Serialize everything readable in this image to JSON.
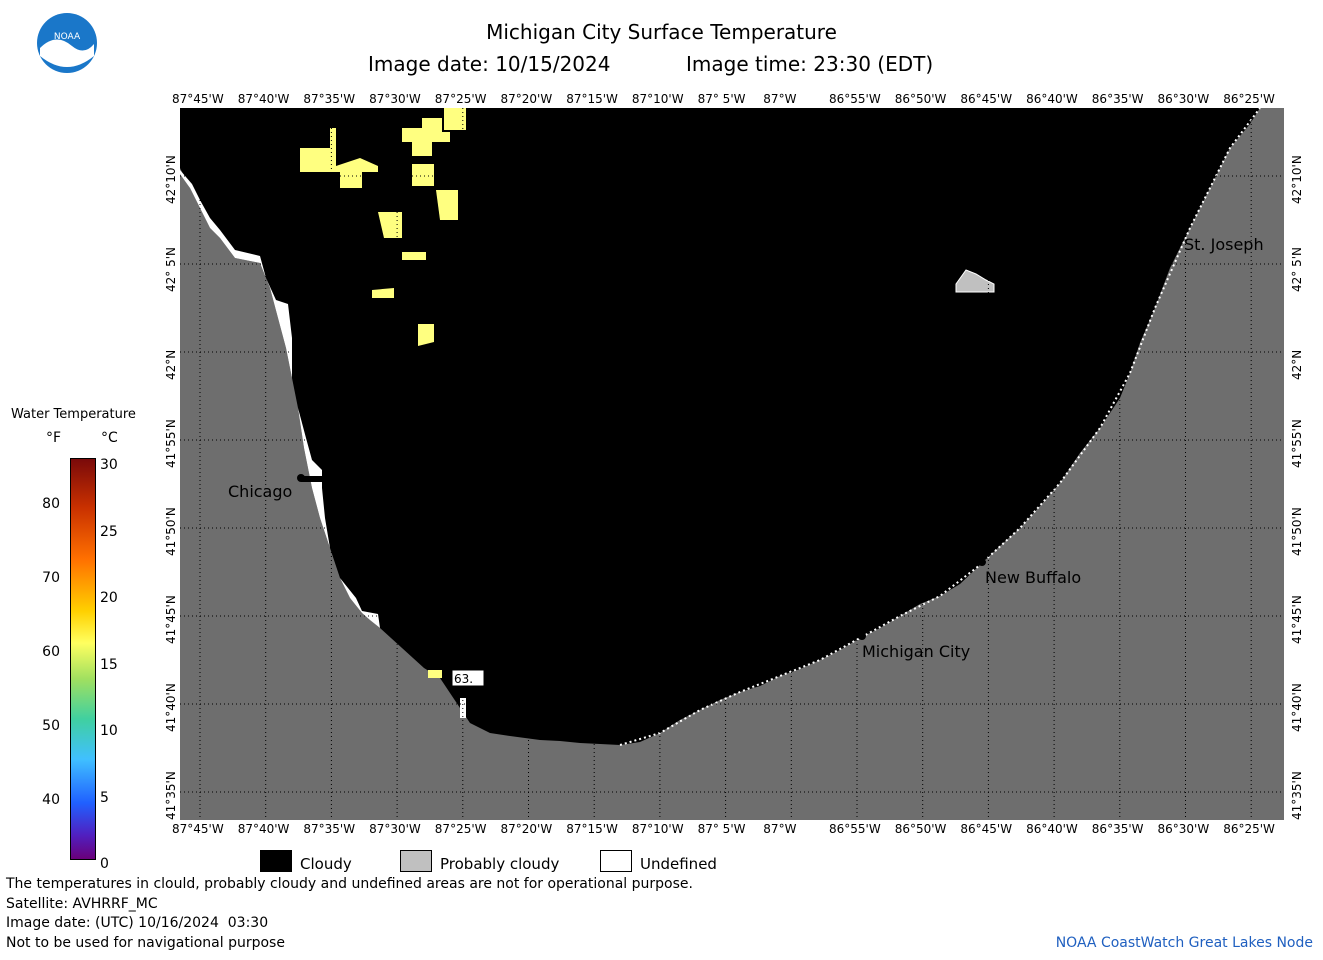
{
  "header": {
    "title": "Michigan City Surface Temperature",
    "image_date_label": "Image date: 10/15/2024",
    "image_time_label": "Image time: 23:30 (EDT)"
  },
  "logo": {
    "text": "NOAA",
    "color": "#1a77c9"
  },
  "lon_ticks": [
    "87°45'W",
    "87°40'W",
    "87°35'W",
    "87°30'W",
    "87°25'W",
    "87°20'W",
    "87°15'W",
    "87°10'W",
    "87° 5'W",
    "87°W",
    "86°55'W",
    "86°50'W",
    "86°45'W",
    "86°40'W",
    "86°35'W",
    "86°30'W",
    "86°25'W"
  ],
  "lat_ticks": [
    "42°10'N",
    "42° 5'N",
    "42°N",
    "41°55'N",
    "41°50'N",
    "41°45'N",
    "41°40'N",
    "41°35'N"
  ],
  "cities": [
    {
      "name": "Chicago"
    },
    {
      "name": "St. Joseph"
    },
    {
      "name": "New Buffalo"
    },
    {
      "name": "Michigan City"
    }
  ],
  "map_label": "63.",
  "scale": {
    "title": "Water Temperature",
    "unit_f": "°F",
    "unit_c": "°C",
    "f_ticks": [
      "80",
      "70",
      "60",
      "50",
      "40"
    ],
    "c_ticks": [
      "30",
      "25",
      "20",
      "15",
      "10",
      "5",
      "0"
    ]
  },
  "legend": {
    "cloudy": "Cloudy",
    "probably_cloudy": "Probably cloudy",
    "undefined": "Undefined",
    "colors": {
      "cloudy": "#000000",
      "probably_cloudy": "#c0c0c0",
      "undefined": "#ffffff",
      "land": "#6e6e6e",
      "warm_patch": "#ffff80"
    }
  },
  "footer": {
    "note": "The temperatures in clould, probably cloudy and undefined areas are not for operational purpose.",
    "satellite": "Satellite: AVHRRF_MC",
    "utc_date": "Image date: (UTC) 10/16/2024  03:30",
    "nav": "Not to be used for navigational purpose",
    "credit": "NOAA CoastWatch Great Lakes Node",
    "credit_color": "#2060c0"
  }
}
